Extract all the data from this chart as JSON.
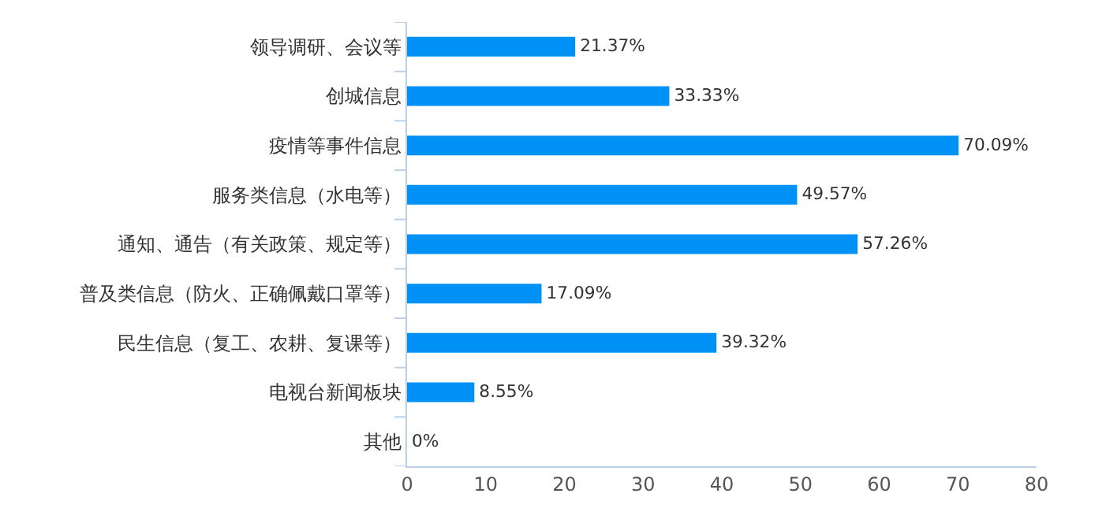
{
  "chart_data": {
    "type": "bar",
    "orientation": "horizontal",
    "categories": [
      "领导调研、会议等",
      "创城信息",
      "疫情等事件信息",
      "服务类信息（水电等）",
      "通知、通告（有关政策、规定等）",
      "普及类信息（防火、正确佩戴口罩等）",
      "民生信息（复工、农耕、复课等）",
      "电视台新闻板块",
      "其他"
    ],
    "values": [
      21.37,
      33.33,
      70.09,
      49.57,
      57.26,
      17.09,
      39.32,
      8.55,
      0
    ],
    "value_labels": [
      "21.37%",
      "33.33%",
      "70.09%",
      "49.57%",
      "57.26%",
      "17.09%",
      "39.32%",
      "8.55%",
      "0%"
    ],
    "color": "#0091f7",
    "xlim": [
      0,
      80
    ],
    "xticks": [
      0,
      10,
      20,
      30,
      40,
      50,
      60,
      70,
      80
    ],
    "grid": false
  }
}
